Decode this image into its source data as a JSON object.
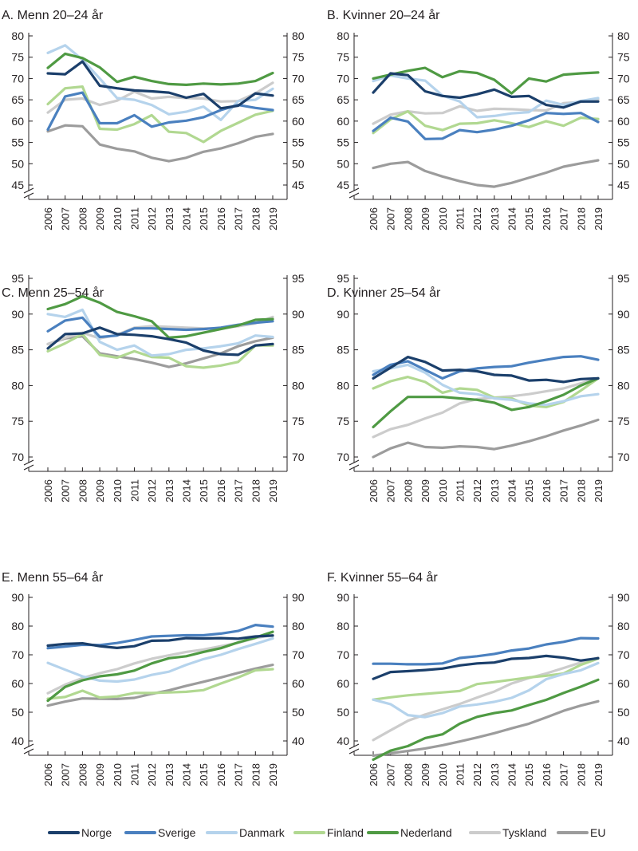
{
  "chart_data": [
    {
      "type": "line",
      "title": "A. Menn 20–24 år",
      "x": [
        "2006",
        "2007",
        "2008",
        "2009",
        "2010",
        "2011",
        "2012",
        "2013",
        "2014",
        "2015",
        "2016",
        "2017",
        "2018",
        "2019"
      ],
      "yticks": [
        80,
        75,
        70,
        65,
        60,
        55,
        50,
        45
      ],
      "ylim": [
        45,
        80
      ],
      "series": [
        {
          "name": "Norge",
          "values": [
            71.2,
            71.0,
            74.0,
            68.3,
            67.7,
            67.2,
            67.0,
            66.7,
            65.5,
            66.4,
            63.0,
            63.6,
            66.5,
            66.0
          ]
        },
        {
          "name": "Sverige",
          "values": [
            58.0,
            65.8,
            66.7,
            59.5,
            59.5,
            61.4,
            58.7,
            59.7,
            60.1,
            60.9,
            62.6,
            63.8,
            63.1,
            62.6
          ]
        },
        {
          "name": "Danmark",
          "values": [
            76.0,
            77.8,
            74.4,
            70.0,
            65.4,
            65.0,
            63.8,
            61.6,
            62.2,
            63.4,
            60.3,
            64.7,
            65.0,
            67.6
          ]
        },
        {
          "name": "Finland",
          "values": [
            64.0,
            67.7,
            68.1,
            58.2,
            58.0,
            59.3,
            61.4,
            57.5,
            57.2,
            55.1,
            57.7,
            59.6,
            61.5,
            62.4
          ]
        },
        {
          "name": "Nederland",
          "values": [
            72.5,
            75.8,
            74.8,
            72.6,
            69.2,
            70.4,
            69.4,
            68.7,
            68.5,
            68.8,
            68.6,
            68.8,
            69.4,
            71.3
          ]
        },
        {
          "name": "Tyskland",
          "values": [
            62.0,
            65.0,
            65.3,
            63.8,
            64.8,
            66.9,
            65.3,
            65.7,
            65.4,
            65.3,
            64.6,
            64.7,
            66.5,
            69.0
          ]
        },
        {
          "name": "EU",
          "values": [
            57.6,
            59.0,
            58.8,
            54.5,
            53.5,
            52.9,
            51.4,
            50.6,
            51.4,
            52.8,
            53.6,
            54.8,
            56.3,
            57.0
          ]
        }
      ]
    },
    {
      "type": "line",
      "title": "B. Kvinner 20–24 år",
      "x": [
        "2006",
        "2007",
        "2008",
        "2009",
        "2010",
        "2011",
        "2012",
        "2013",
        "2014",
        "2015",
        "2016",
        "2017",
        "2018",
        "2019"
      ],
      "yticks": [
        80,
        75,
        70,
        65,
        60,
        55,
        50,
        45
      ],
      "ylim": [
        45,
        80
      ],
      "series": [
        {
          "name": "Norge",
          "values": [
            66.7,
            71.2,
            70.8,
            67.0,
            65.9,
            65.5,
            66.3,
            67.4,
            65.7,
            65.9,
            63.8,
            63.2,
            64.6,
            64.6
          ]
        },
        {
          "name": "Sverige",
          "values": [
            57.7,
            60.8,
            59.9,
            55.8,
            55.9,
            57.9,
            57.4,
            58.0,
            58.9,
            60.2,
            61.9,
            61.7,
            61.9,
            59.8
          ]
        },
        {
          "name": "Danmark",
          "values": [
            69.4,
            70.7,
            70.0,
            69.5,
            66.0,
            64.6,
            60.9,
            61.2,
            61.8,
            62.1,
            64.8,
            63.8,
            64.7,
            65.4
          ]
        },
        {
          "name": "Finland",
          "values": [
            57.2,
            60.4,
            62.3,
            58.9,
            57.9,
            59.4,
            59.5,
            60.2,
            59.5,
            58.6,
            60.0,
            58.9,
            60.8,
            60.5
          ]
        },
        {
          "name": "Nederland",
          "values": [
            70.0,
            70.9,
            71.8,
            72.5,
            70.3,
            71.7,
            71.3,
            69.7,
            66.5,
            70.0,
            69.3,
            70.9,
            71.2,
            71.4
          ]
        },
        {
          "name": "Tyskland",
          "values": [
            59.4,
            61.5,
            62.3,
            61.8,
            61.9,
            63.5,
            62.4,
            62.9,
            62.8,
            62.6,
            62.5,
            64.2,
            64.5,
            65.1
          ]
        },
        {
          "name": "EU",
          "values": [
            49.0,
            50.0,
            50.4,
            48.3,
            47.0,
            45.9,
            45.0,
            44.6,
            45.5,
            46.7,
            47.9,
            49.3,
            50.1,
            50.8
          ]
        }
      ]
    },
    {
      "type": "line",
      "title": "C. Menn 25–54 år",
      "x": [
        "2006",
        "2007",
        "2008",
        "2009",
        "2010",
        "2011",
        "2012",
        "2013",
        "2014",
        "2015",
        "2016",
        "2017",
        "2018",
        "2019"
      ],
      "yticks": [
        95,
        90,
        85,
        80,
        75,
        70
      ],
      "ylim": [
        70,
        95
      ],
      "series": [
        {
          "name": "Norge",
          "values": [
            85.2,
            87.2,
            87.3,
            88.1,
            87.2,
            87.1,
            86.9,
            86.5,
            86.0,
            84.9,
            84.4,
            84.3,
            85.6,
            85.8
          ]
        },
        {
          "name": "Sverige",
          "values": [
            87.6,
            89.1,
            89.5,
            86.8,
            87.0,
            88.0,
            88.0,
            87.9,
            87.8,
            87.9,
            88.1,
            88.5,
            88.8,
            89.0
          ]
        },
        {
          "name": "Danmark",
          "values": [
            90.0,
            89.6,
            90.6,
            86.1,
            85.0,
            85.6,
            84.2,
            84.4,
            85.0,
            85.2,
            85.5,
            85.9,
            87.0,
            86.8
          ]
        },
        {
          "name": "Finland",
          "values": [
            84.8,
            85.9,
            87.2,
            84.3,
            83.9,
            84.8,
            84.0,
            83.9,
            82.7,
            82.5,
            82.8,
            83.3,
            85.6,
            85.6
          ]
        },
        {
          "name": "Nederland",
          "values": [
            90.7,
            91.4,
            92.5,
            91.6,
            90.3,
            89.7,
            89.0,
            86.7,
            86.9,
            87.4,
            87.9,
            88.4,
            89.2,
            89.3
          ]
        },
        {
          "name": "Tyskland",
          "values": [
            85.8,
            86.7,
            87.4,
            86.6,
            87.1,
            88.1,
            88.3,
            88.2,
            88.1,
            88.0,
            88.0,
            88.3,
            88.7,
            89.6
          ]
        },
        {
          "name": "EU",
          "values": [
            85.8,
            86.6,
            86.9,
            84.5,
            84.1,
            83.7,
            83.2,
            82.6,
            83.1,
            83.8,
            84.5,
            85.5,
            86.2,
            86.7
          ]
        }
      ]
    },
    {
      "type": "line",
      "title": "D. Kvinner 25–54 år",
      "x": [
        "2006",
        "2007",
        "2008",
        "2009",
        "2010",
        "2011",
        "2012",
        "2013",
        "2014",
        "2015",
        "2016",
        "2017",
        "2018",
        "2019"
      ],
      "yticks": [
        95,
        90,
        85,
        80,
        75,
        70
      ],
      "ylim": [
        70,
        95
      ],
      "series": [
        {
          "name": "Norge",
          "values": [
            81.0,
            82.5,
            84.0,
            83.3,
            82.1,
            82.2,
            82.0,
            81.5,
            81.4,
            80.7,
            80.8,
            80.5,
            80.9,
            81.0
          ]
        },
        {
          "name": "Sverige",
          "values": [
            81.5,
            82.9,
            83.4,
            82.2,
            81.0,
            82.0,
            82.4,
            82.6,
            82.7,
            83.2,
            83.6,
            84.0,
            84.1,
            83.6
          ]
        },
        {
          "name": "Danmark",
          "values": [
            82.0,
            82.4,
            82.9,
            81.8,
            80.1,
            79.0,
            78.8,
            78.2,
            78.0,
            77.5,
            77.3,
            77.8,
            78.5,
            78.8
          ]
        },
        {
          "name": "Finland",
          "values": [
            79.6,
            80.6,
            81.2,
            80.5,
            79.0,
            79.6,
            79.4,
            78.3,
            78.2,
            77.2,
            77.0,
            77.7,
            79.3,
            81.0
          ]
        },
        {
          "name": "Nederland",
          "values": [
            74.2,
            76.4,
            78.4,
            78.4,
            78.4,
            78.2,
            78.0,
            77.6,
            76.6,
            77.0,
            77.8,
            78.7,
            80.0,
            81.0
          ]
        },
        {
          "name": "Tyskland",
          "values": [
            72.8,
            73.9,
            74.5,
            75.4,
            76.2,
            77.5,
            78.1,
            78.3,
            78.5,
            78.8,
            79.2,
            79.6,
            80.3,
            81.0
          ]
        },
        {
          "name": "EU",
          "values": [
            70.0,
            71.2,
            72.0,
            71.4,
            71.3,
            71.5,
            71.4,
            71.1,
            71.6,
            72.2,
            72.9,
            73.7,
            74.4,
            75.2
          ]
        }
      ]
    },
    {
      "type": "line",
      "title": "E. Menn 55–64 år",
      "x": [
        "2006",
        "2007",
        "2008",
        "2009",
        "2010",
        "2011",
        "2012",
        "2013",
        "2014",
        "2015",
        "2016",
        "2017",
        "2018",
        "2019"
      ],
      "yticks": [
        90,
        80,
        70,
        60,
        50,
        40
      ],
      "ylim": [
        40,
        90
      ],
      "series": [
        {
          "name": "Norge",
          "values": [
            73.2,
            73.8,
            74.0,
            73.0,
            72.4,
            73.0,
            74.9,
            75.0,
            75.8,
            75.7,
            75.8,
            75.6,
            76.4,
            76.7
          ]
        },
        {
          "name": "Sverige",
          "values": [
            72.3,
            72.9,
            73.5,
            73.4,
            74.1,
            75.2,
            76.4,
            76.6,
            76.8,
            76.8,
            77.4,
            78.3,
            80.4,
            79.8
          ]
        },
        {
          "name": "Danmark",
          "values": [
            67.2,
            64.8,
            62.5,
            61.0,
            60.7,
            61.4,
            63.0,
            64.1,
            66.5,
            68.5,
            70.0,
            72.0,
            73.8,
            75.7
          ]
        },
        {
          "name": "Finland",
          "values": [
            54.7,
            55.3,
            57.5,
            55.1,
            55.5,
            56.7,
            56.7,
            56.9,
            57.1,
            57.7,
            60.0,
            62.1,
            64.6,
            65.0
          ]
        },
        {
          "name": "Nederland",
          "values": [
            54.0,
            58.8,
            61.1,
            62.5,
            63.2,
            64.5,
            67.0,
            68.8,
            69.5,
            71.0,
            72.3,
            74.3,
            76.0,
            78.0
          ]
        },
        {
          "name": "Tyskland",
          "values": [
            56.6,
            59.6,
            61.9,
            63.6,
            65.0,
            67.0,
            68.6,
            69.8,
            71.0,
            71.8,
            73.0,
            74.2,
            75.8,
            76.9
          ]
        },
        {
          "name": "EU",
          "values": [
            52.3,
            53.7,
            54.8,
            54.7,
            54.6,
            55.0,
            56.4,
            57.6,
            59.2,
            60.6,
            62.1,
            63.7,
            65.2,
            66.5
          ]
        }
      ]
    },
    {
      "type": "line",
      "title": "F. Kvinner 55–64 år",
      "x": [
        "2006",
        "2007",
        "2008",
        "2009",
        "2010",
        "2011",
        "2012",
        "2013",
        "2014",
        "2015",
        "2016",
        "2017",
        "2018",
        "2019"
      ],
      "yticks": [
        90,
        80,
        70,
        60,
        50,
        40
      ],
      "ylim": [
        40,
        90
      ],
      "series": [
        {
          "name": "Norge",
          "values": [
            61.6,
            64.0,
            64.3,
            64.7,
            65.2,
            66.3,
            67.0,
            67.3,
            68.6,
            68.9,
            69.6,
            69.0,
            68.0,
            68.8
          ]
        },
        {
          "name": "Sverige",
          "values": [
            66.9,
            66.9,
            66.7,
            66.7,
            67.0,
            68.9,
            69.5,
            70.3,
            71.5,
            72.2,
            73.6,
            74.5,
            75.8,
            75.7
          ]
        },
        {
          "name": "Danmark",
          "values": [
            54.4,
            52.8,
            49.0,
            48.3,
            49.7,
            52.0,
            52.7,
            53.6,
            55.0,
            57.6,
            61.5,
            63.3,
            64.6,
            67.1
          ]
        },
        {
          "name": "Finland",
          "values": [
            54.4,
            55.2,
            55.9,
            56.4,
            56.9,
            57.4,
            59.8,
            60.5,
            61.3,
            62.1,
            62.7,
            63.5,
            66.5,
            68.7
          ]
        },
        {
          "name": "Nederland",
          "values": [
            33.5,
            36.6,
            38.2,
            41.0,
            42.3,
            46.0,
            48.4,
            49.7,
            50.6,
            52.5,
            54.3,
            56.7,
            58.9,
            61.3
          ]
        },
        {
          "name": "Tyskland",
          "values": [
            40.3,
            43.7,
            47.0,
            49.2,
            51.0,
            52.9,
            55.1,
            57.2,
            60.0,
            61.9,
            63.5,
            65.4,
            67.3,
            69.0
          ]
        },
        {
          "name": "EU",
          "values": [
            34.9,
            35.7,
            36.5,
            37.4,
            38.5,
            39.8,
            41.2,
            42.7,
            44.4,
            46.0,
            48.2,
            50.5,
            52.3,
            53.8
          ]
        }
      ]
    }
  ],
  "legend": [
    {
      "name": "Norge",
      "color": "#1b3f6b"
    },
    {
      "name": "Sverige",
      "color": "#4a80bf"
    },
    {
      "name": "Danmark",
      "color": "#b5d3ec"
    },
    {
      "name": "Finland",
      "color": "#b1d891"
    },
    {
      "name": "Nederland",
      "color": "#4f9a43"
    },
    {
      "name": "Tyskland",
      "color": "#cccccc"
    },
    {
      "name": "EU",
      "color": "#9c9c9c"
    }
  ]
}
